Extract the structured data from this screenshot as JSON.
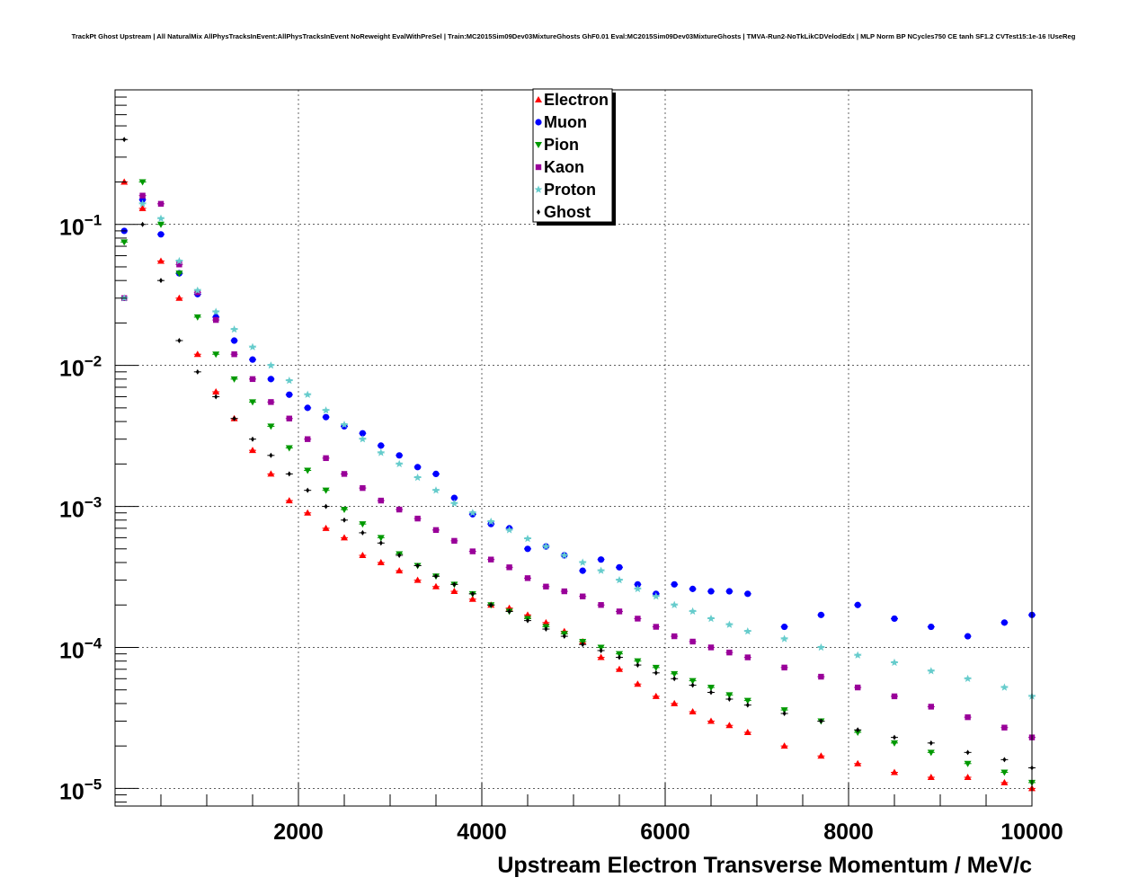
{
  "chart_data": {
    "type": "scatter",
    "title": "TrackPt Ghost Upstream | All NaturalMix AllPhysTracksInEvent:AllPhysTracksInEvent NoReweight EvalWithPreSel | Train:MC2015Sim09Dev03MixtureGhosts GhF0.01 Eval:MC2015Sim09Dev03MixtureGhosts | TMVA-Run2-NoTkLikCDVelodEdx | MLP Norm BP NCycles750 CE tanh SF1.2 CVTest15:1e-16 !UseReg",
    "xlabel": "Upstream Electron Transverse Momentum / MeV/c",
    "ylabel": "",
    "xlim": [
      0,
      10000
    ],
    "ylim": [
      7.5e-06,
      0.9
    ],
    "y_scale": "log",
    "grid": true,
    "legend_position": "top-center",
    "x_ticks": [
      {
        "value": 2000,
        "label": "2000"
      },
      {
        "value": 4000,
        "label": "4000"
      },
      {
        "value": 6000,
        "label": "6000"
      },
      {
        "value": 8000,
        "label": "8000"
      },
      {
        "value": 10000,
        "label": "10000"
      }
    ],
    "y_ticks": [
      {
        "value": 0.1,
        "base": "10",
        "exp": "−1"
      },
      {
        "value": 0.01,
        "base": "10",
        "exp": "−2"
      },
      {
        "value": 0.001,
        "base": "10",
        "exp": "−3"
      },
      {
        "value": 0.0001,
        "base": "10",
        "exp": "−4"
      },
      {
        "value": 1e-05,
        "base": "10",
        "exp": "−5"
      }
    ],
    "series": [
      {
        "name": "Electron",
        "color": "#ff0000",
        "marker": "triangle-up",
        "x": [
          100,
          300,
          500,
          700,
          900,
          1100,
          1300,
          1500,
          1700,
          1900,
          2100,
          2300,
          2500,
          2700,
          2900,
          3100,
          3300,
          3500,
          3700,
          3900,
          4100,
          4300,
          4500,
          4700,
          4900,
          5100,
          5300,
          5500,
          5700,
          5900,
          6100,
          6300,
          6500,
          6700,
          6900,
          7300,
          7700,
          8100,
          8500,
          8900,
          9300,
          9700,
          10000
        ],
        "y": [
          0.2,
          0.13,
          0.055,
          0.03,
          0.012,
          0.0065,
          0.0042,
          0.0025,
          0.0017,
          0.0011,
          0.0009,
          0.0007,
          0.0006,
          0.00045,
          0.0004,
          0.00035,
          0.0003,
          0.00027,
          0.00025,
          0.00022,
          0.0002,
          0.00019,
          0.00017,
          0.00015,
          0.00013,
          0.00011,
          8.5e-05,
          7e-05,
          5.5e-05,
          4.5e-05,
          4e-05,
          3.5e-05,
          3e-05,
          2.8e-05,
          2.5e-05,
          2e-05,
          1.7e-05,
          1.5e-05,
          1.3e-05,
          1.2e-05,
          1.2e-05,
          1.1e-05,
          1e-05
        ]
      },
      {
        "name": "Muon",
        "color": "#0000ff",
        "marker": "circle",
        "x": [
          100,
          300,
          500,
          700,
          900,
          1100,
          1300,
          1500,
          1700,
          1900,
          2100,
          2300,
          2500,
          2700,
          2900,
          3100,
          3300,
          3500,
          3700,
          3900,
          4100,
          4300,
          4500,
          4700,
          4900,
          5100,
          5300,
          5500,
          5700,
          5900,
          6100,
          6300,
          6500,
          6700,
          6900,
          7300,
          7700,
          8100,
          8500,
          8900,
          9300,
          9700,
          10000
        ],
        "y": [
          0.09,
          0.15,
          0.085,
          0.045,
          0.032,
          0.022,
          0.015,
          0.011,
          0.008,
          0.0062,
          0.005,
          0.0043,
          0.0037,
          0.0033,
          0.0027,
          0.0023,
          0.0019,
          0.0017,
          0.00115,
          0.00088,
          0.00075,
          0.0007,
          0.0005,
          0.00052,
          0.00045,
          0.00035,
          0.00042,
          0.00037,
          0.00028,
          0.00024,
          0.00028,
          0.00026,
          0.00025,
          0.00025,
          0.00024,
          0.00014,
          0.00017,
          0.0002,
          0.00016,
          0.00014,
          0.00012,
          0.00015,
          0.00017
        ]
      },
      {
        "name": "Pion",
        "color": "#009900",
        "marker": "triangle-down",
        "x": [
          100,
          300,
          500,
          700,
          900,
          1100,
          1300,
          1500,
          1700,
          1900,
          2100,
          2300,
          2500,
          2700,
          2900,
          3100,
          3300,
          3500,
          3700,
          3900,
          4100,
          4300,
          4500,
          4700,
          4900,
          5100,
          5300,
          5500,
          5700,
          5900,
          6100,
          6300,
          6500,
          6700,
          6900,
          7300,
          7700,
          8100,
          8500,
          8900,
          9300,
          9700,
          10000
        ],
        "y": [
          0.075,
          0.2,
          0.1,
          0.045,
          0.022,
          0.012,
          0.008,
          0.0055,
          0.0037,
          0.0026,
          0.0018,
          0.0013,
          0.00095,
          0.00075,
          0.0006,
          0.00046,
          0.00038,
          0.00032,
          0.00028,
          0.00024,
          0.0002,
          0.00018,
          0.00016,
          0.00014,
          0.000125,
          0.00011,
          0.0001,
          9e-05,
          8e-05,
          7.2e-05,
          6.5e-05,
          5.8e-05,
          5.2e-05,
          4.6e-05,
          4.2e-05,
          3.6e-05,
          3e-05,
          2.5e-05,
          2.1e-05,
          1.8e-05,
          1.5e-05,
          1.3e-05,
          1.1e-05
        ]
      },
      {
        "name": "Kaon",
        "color": "#990099",
        "marker": "square",
        "x": [
          100,
          300,
          500,
          700,
          900,
          1100,
          1300,
          1500,
          1700,
          1900,
          2100,
          2300,
          2500,
          2700,
          2900,
          3100,
          3300,
          3500,
          3700,
          3900,
          4100,
          4300,
          4500,
          4700,
          4900,
          5100,
          5300,
          5500,
          5700,
          5900,
          6100,
          6300,
          6500,
          6700,
          6900,
          7300,
          7700,
          8100,
          8500,
          8900,
          9300,
          9700,
          10000
        ],
        "y": [
          0.03,
          0.16,
          0.14,
          0.052,
          0.033,
          0.021,
          0.012,
          0.008,
          0.0055,
          0.0042,
          0.003,
          0.0022,
          0.0017,
          0.00135,
          0.0011,
          0.00095,
          0.00082,
          0.00068,
          0.00057,
          0.00048,
          0.00042,
          0.00037,
          0.00031,
          0.00027,
          0.00025,
          0.00023,
          0.0002,
          0.00018,
          0.00016,
          0.00014,
          0.00012,
          0.00011,
          0.0001,
          9.2e-05,
          8.5e-05,
          7.2e-05,
          6.2e-05,
          5.2e-05,
          4.5e-05,
          3.8e-05,
          3.2e-05,
          2.7e-05,
          2.3e-05
        ]
      },
      {
        "name": "Proton",
        "color": "#66cccc",
        "marker": "star",
        "x": [
          100,
          300,
          500,
          700,
          900,
          1100,
          1300,
          1500,
          1700,
          1900,
          2100,
          2300,
          2500,
          2700,
          2900,
          3100,
          3300,
          3500,
          3700,
          3900,
          4100,
          4300,
          4500,
          4700,
          4900,
          5100,
          5300,
          5500,
          5700,
          5900,
          6100,
          6300,
          6500,
          6700,
          6900,
          7300,
          7700,
          8100,
          8500,
          8900,
          9300,
          9700,
          10000
        ],
        "y": [
          0.03,
          0.14,
          0.11,
          0.055,
          0.034,
          0.024,
          0.018,
          0.0135,
          0.01,
          0.0078,
          0.0062,
          0.0048,
          0.0038,
          0.003,
          0.0024,
          0.002,
          0.0016,
          0.0013,
          0.00105,
          0.0009,
          0.00078,
          0.00068,
          0.00059,
          0.00052,
          0.00045,
          0.0004,
          0.00035,
          0.0003,
          0.00026,
          0.00023,
          0.0002,
          0.00018,
          0.00016,
          0.000145,
          0.00013,
          0.000115,
          0.0001,
          8.8e-05,
          7.8e-05,
          6.8e-05,
          6e-05,
          5.2e-05,
          4.5e-05
        ]
      },
      {
        "name": "Ghost",
        "color": "#000000",
        "marker": "diamond",
        "x": [
          100,
          300,
          500,
          700,
          900,
          1100,
          1300,
          1500,
          1700,
          1900,
          2100,
          2300,
          2500,
          2700,
          2900,
          3100,
          3300,
          3500,
          3700,
          3900,
          4100,
          4300,
          4500,
          4700,
          4900,
          5100,
          5300,
          5500,
          5700,
          5900,
          6100,
          6300,
          6500,
          6700,
          6900,
          7300,
          7700,
          8100,
          8500,
          8900,
          9300,
          9700,
          10000
        ],
        "y": [
          0.4,
          0.1,
          0.04,
          0.015,
          0.009,
          0.006,
          0.0042,
          0.003,
          0.0023,
          0.0017,
          0.0013,
          0.001,
          0.0008,
          0.00065,
          0.00055,
          0.00045,
          0.00038,
          0.00032,
          0.00028,
          0.00024,
          0.0002,
          0.00018,
          0.000155,
          0.000135,
          0.00012,
          0.000105,
          9.5e-05,
          8.5e-05,
          7.5e-05,
          6.6e-05,
          6e-05,
          5.4e-05,
          4.8e-05,
          4.3e-05,
          3.9e-05,
          3.4e-05,
          3e-05,
          2.6e-05,
          2.3e-05,
          2.1e-05,
          1.8e-05,
          1.6e-05,
          1.4e-05
        ]
      }
    ]
  }
}
